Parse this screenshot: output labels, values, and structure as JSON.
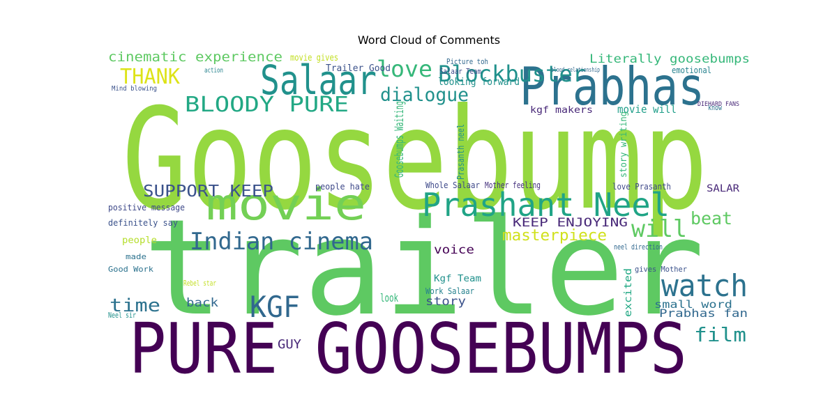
{
  "chart_data": {
    "type": "wordcloud",
    "title": "Word Cloud of Comments",
    "words": [
      "Goosebump",
      "trailer",
      "PURE GOOSEBUMPS",
      "Prabhas",
      "Salaar",
      "movie",
      "Prashant Neel",
      "watch",
      "KGF",
      "Indian cinema",
      "Blockbuster",
      "BLOODY PURE",
      "love",
      "dialogue",
      "THANK",
      "SUPPORT KEEP",
      "will",
      "beat",
      "masterpiece",
      "time",
      "film",
      "GUY",
      "cinematic experience",
      "Literally goosebumps",
      "KEEP ENJOYING",
      "voice",
      "story",
      "back",
      "look",
      "Prabhas fan",
      "small word",
      "Kgf Team",
      "movie will",
      "looking forward",
      "Trailer Good",
      "movie gives",
      "kgf makers",
      "people hate",
      "love Prasanth",
      "SALAR",
      "emotional",
      "Whole Salaar",
      "Mother feeling",
      "definitely say",
      "positive message",
      "Good Work",
      "Neel sir",
      "Rebel star",
      "people",
      "made",
      "Goosebumps Waiting",
      "Work Salaar",
      "neel direction",
      "gives Mother",
      "Salaar Team",
      "Picture toh",
      "Mind blowing",
      "action",
      "DIEHARD FANS",
      "blood relationship",
      "know",
      "excited",
      "story writing",
      "Prasanth neel"
    ],
    "values": [
      200,
      190,
      100,
      75,
      58,
      62,
      46,
      44,
      42,
      34,
      32,
      30,
      32,
      27,
      30,
      23,
      34,
      25,
      22,
      26,
      28,
      18,
      19,
      17,
      17,
      17,
      17,
      17,
      16,
      16,
      15,
      13,
      15,
      14,
      13,
      13,
      13,
      12,
      12,
      14,
      12,
      12,
      12,
      12,
      12,
      11,
      11,
      11,
      13,
      11,
      17,
      12,
      11,
      11,
      11,
      11,
      10,
      10,
      9,
      9,
      11,
      14,
      13,
      13
    ],
    "colors": [
      "#95d840",
      "#5ec962",
      "#440154",
      "#2c728e",
      "#21918c",
      "#73d055",
      "#20a486",
      "#2c728e",
      "#31688e",
      "#31688e",
      "#21918c",
      "#22a884",
      "#35b779",
      "#21918c",
      "#dde318",
      "#3b528b",
      "#5ec962",
      "#5ec962",
      "#d0e11c",
      "#2c728e",
      "#21918c",
      "#482878",
      "#5ec962",
      "#35b779",
      "#482878",
      "#440154",
      "#3b528b",
      "#31688e",
      "#35b779",
      "#31688e",
      "#2c728e",
      "#21918c",
      "#1f9e89",
      "#21918c",
      "#3b528b",
      "#c2df23",
      "#482878",
      "#3e4989",
      "#3e4989",
      "#482878",
      "#26828e",
      "#3e4989",
      "#46327e",
      "#3b528b",
      "#3e4989",
      "#2c728e",
      "#21918c",
      "#c2df23",
      "#b5de2b",
      "#2c728e",
      "#35b779",
      "#26828e",
      "#31688e",
      "#3b528b",
      "#3e4989",
      "#31688e",
      "#3b528b",
      "#26828e",
      "#482878",
      "#31688e",
      "#2c728e",
      "#22a884",
      "#35b779",
      "#21918c"
    ]
  }
}
